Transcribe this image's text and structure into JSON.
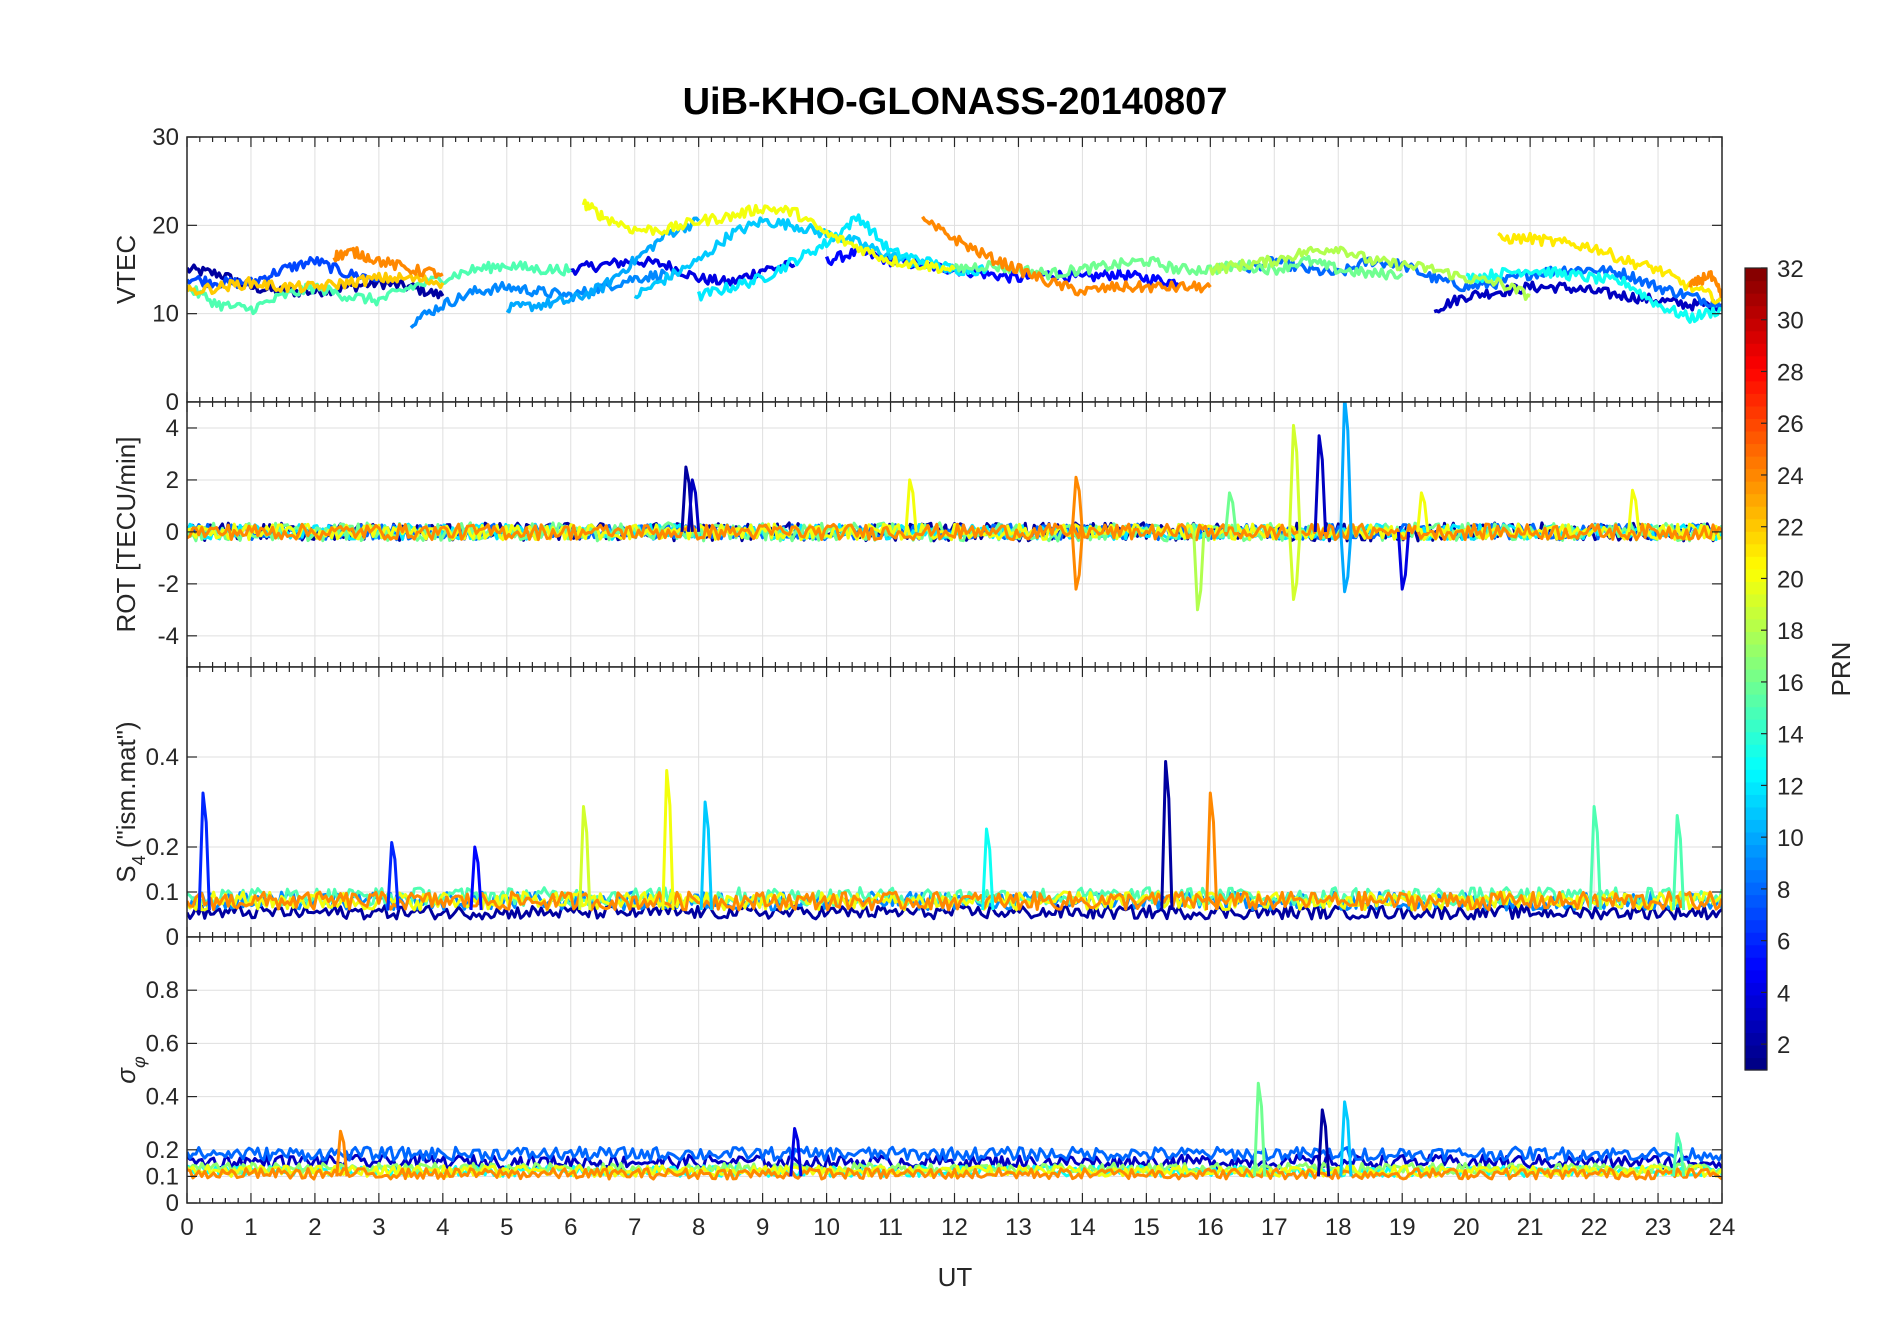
{
  "chart_data": {
    "type": "line",
    "title": "UiB-KHO-GLONASS-20140807",
    "xlabel": "UT",
    "xlim": [
      0,
      24
    ],
    "xticks": [
      0,
      1,
      2,
      3,
      4,
      5,
      6,
      7,
      8,
      9,
      10,
      11,
      12,
      13,
      14,
      15,
      16,
      17,
      18,
      19,
      20,
      21,
      22,
      23,
      24
    ],
    "grid": true,
    "panels": [
      {
        "id": "vtec",
        "ylabel": "VTEC",
        "ylim": [
          0,
          30
        ],
        "yticks": [
          0,
          10,
          20,
          30
        ],
        "yticklabels": [
          "0",
          "10",
          "20",
          "30"
        ],
        "series": [
          {
            "prn": 2,
            "x": [
              0,
              0.5,
              1,
              1.5,
              2,
              2.5,
              3,
              3.5,
              4
            ],
            "y": [
              15,
              14.5,
              13,
              12.5,
              12.5,
              13,
              13.5,
              13,
              12
            ]
          },
          {
            "prn": 4,
            "x": [
              6,
              6.5,
              7,
              7.5,
              8,
              8.5,
              9,
              9.5
            ],
            "y": [
              15,
              15.5,
              16,
              15.5,
              14,
              13.5,
              15,
              15.5
            ]
          },
          {
            "prn": 5,
            "x": [
              10,
              10.5,
              11,
              11.5,
              12,
              12.5,
              13,
              13.5,
              14,
              14.5,
              15,
              15.5
            ],
            "y": [
              16,
              17,
              16,
              15.5,
              15,
              14.5,
              14,
              14.5,
              14,
              14.5,
              14,
              13.5
            ]
          },
          {
            "prn": 3,
            "x": [
              19.5,
              20,
              20.5,
              21,
              21.5,
              22,
              22.5,
              23,
              23.5,
              24
            ],
            "y": [
              10.5,
              12,
              12.5,
              13,
              13,
              12.5,
              12,
              11.5,
              11,
              11
            ]
          },
          {
            "prn": 7,
            "x": [
              0,
              0.5,
              1,
              1.5,
              2,
              2.5,
              3
            ],
            "y": [
              14,
              13.5,
              13.5,
              15,
              16,
              14.5,
              14
            ]
          },
          {
            "prn": 8,
            "x": [
              16.5,
              17,
              17.5,
              18,
              18.5,
              19,
              19.5,
              20,
              20.5,
              21,
              21.5,
              22,
              22.5,
              23,
              23.5,
              24
            ],
            "y": [
              15,
              16,
              15,
              14.5,
              16,
              15.5,
              14,
              13,
              13.5,
              14.5,
              15,
              15,
              14.5,
              13,
              12,
              11
            ]
          },
          {
            "prn": 9,
            "x": [
              3.5,
              4,
              4.5,
              5,
              5.5,
              6,
              6.5,
              7,
              7.5
            ],
            "y": [
              9,
              11,
              12.5,
              13,
              12.5,
              12,
              13,
              14,
              14.5
            ]
          },
          {
            "prn": 10,
            "x": [
              5,
              5.5,
              6,
              6.5,
              7,
              7.5,
              8
            ],
            "y": [
              10.5,
              11,
              11.5,
              13,
              16,
              19,
              20.5
            ]
          },
          {
            "prn": 11,
            "x": [
              7,
              7.5,
              8,
              8.5,
              9,
              9.5,
              10,
              10.5,
              11,
              11.5,
              12
            ],
            "y": [
              12,
              14,
              16,
              19,
              20.5,
              20,
              19,
              18,
              16.5,
              15.5,
              15
            ]
          },
          {
            "prn": 12,
            "x": [
              8,
              8.5,
              9,
              9.5,
              10,
              10.5,
              11,
              11.5,
              12,
              12.5
            ],
            "y": [
              12,
              13,
              14,
              16,
              18,
              21,
              17,
              16,
              15,
              15
            ]
          },
          {
            "prn": 13,
            "x": [
              20,
              20.5,
              21,
              21.5,
              22,
              22.5,
              23,
              23.5,
              24
            ],
            "y": [
              14,
              14.5,
              15,
              14.5,
              14,
              13.5,
              11,
              9.5,
              10.5
            ]
          },
          {
            "prn": 15,
            "x": [
              0,
              0.5,
              1,
              1.5,
              2,
              2.5,
              3,
              3.5,
              4,
              4.5,
              5,
              5.5,
              6
            ],
            "y": [
              13,
              11,
              10.5,
              12,
              13,
              12,
              11.5,
              13,
              14,
              15,
              15.5,
              15,
              15
            ]
          },
          {
            "prn": 16,
            "x": [
              12,
              12.5,
              13,
              13.5,
              14,
              14.5,
              15,
              15.5,
              16,
              16.5,
              17,
              17.5,
              18,
              18.5,
              19
            ],
            "y": [
              15,
              15.5,
              15,
              14.5,
              15,
              15.5,
              16,
              15,
              15,
              15.5,
              15,
              16,
              15,
              14.5,
              14.5
            ]
          },
          {
            "prn": 18,
            "x": [
              16,
              16.5,
              17,
              17.5,
              18,
              18.5,
              19,
              19.5,
              20,
              20.5,
              21
            ],
            "y": [
              15,
              15.5,
              16,
              17,
              17.5,
              16,
              15.5,
              15,
              14,
              13.5,
              12
            ]
          },
          {
            "prn": 20,
            "x": [
              6.2,
              6.5,
              7,
              7.5,
              8,
              8.5,
              9,
              9.5,
              10,
              10.5,
              11,
              11.5,
              12
            ],
            "y": [
              22.5,
              21,
              19.5,
              19.5,
              20.5,
              21,
              22,
              21.5,
              19,
              17.5,
              16,
              15.5,
              15
            ]
          },
          {
            "prn": 21,
            "x": [
              20.5,
              21,
              21.5,
              22,
              22.5,
              23,
              23.5,
              24
            ],
            "y": [
              18.5,
              18.5,
              18,
              17.5,
              16,
              15,
              13,
              11.5
            ]
          },
          {
            "prn": 22,
            "x": [
              0,
              0.5,
              1,
              1.5,
              2,
              2.5,
              3,
              3.5,
              4
            ],
            "y": [
              12.5,
              13,
              13.5,
              13,
              13,
              13.5,
              14,
              14,
              13.5
            ]
          },
          {
            "prn": 24,
            "x": [
              2.3,
              2.6,
              3,
              3.5,
              4
            ],
            "y": [
              16.5,
              17,
              16,
              15,
              14.5
            ]
          },
          {
            "prn": 24,
            "x": [
              11.5,
              12,
              12.5,
              13,
              13.5,
              14,
              14.5,
              15,
              15.5,
              16
            ],
            "y": [
              20.5,
              18.5,
              16.5,
              15,
              13.5,
              12.5,
              13,
              13,
              13,
              13
            ]
          },
          {
            "prn": 24,
            "x": [
              23.5,
              23.8,
              24
            ],
            "y": [
              13,
              14.5,
              12
            ]
          }
        ]
      },
      {
        "id": "rot",
        "ylabel": "ROT [TECU/min]",
        "ylim": [
          -5.2,
          5
        ],
        "yticks": [
          -4,
          -2,
          0,
          2,
          4
        ],
        "yticklabels": [
          "-4",
          "-2",
          "0",
          "2",
          "4"
        ],
        "noise_series": [
          {
            "prn": 2,
            "amplitude": 0.35
          },
          {
            "prn": 8,
            "amplitude": 0.3
          },
          {
            "prn": 12,
            "amplitude": 0.3
          },
          {
            "prn": 16,
            "amplitude": 0.35
          },
          {
            "prn": 20,
            "amplitude": 0.3
          },
          {
            "prn": 24,
            "amplitude": 0.3
          }
        ],
        "spikes": [
          {
            "x": 7.8,
            "y": 2.5,
            "prn": 2
          },
          {
            "x": 7.9,
            "y": 2.0,
            "prn": 3
          },
          {
            "x": 11.3,
            "y": 2.0,
            "prn": 20
          },
          {
            "x": 13.9,
            "y": 2.1,
            "prn": 24
          },
          {
            "x": 13.9,
            "y": -2.2,
            "prn": 24
          },
          {
            "x": 15.8,
            "y": -3.0,
            "prn": 18
          },
          {
            "x": 16.3,
            "y": 1.5,
            "prn": 16
          },
          {
            "x": 17.3,
            "y": 4.1,
            "prn": 19
          },
          {
            "x": 17.3,
            "y": -2.6,
            "prn": 19
          },
          {
            "x": 17.7,
            "y": 3.7,
            "prn": 3
          },
          {
            "x": 18.1,
            "y": 5.2,
            "prn": 10
          },
          {
            "x": 18.1,
            "y": -2.3,
            "prn": 10
          },
          {
            "x": 19.0,
            "y": -2.2,
            "prn": 4
          },
          {
            "x": 19.3,
            "y": 1.5,
            "prn": 20
          },
          {
            "x": 22.6,
            "y": 1.6,
            "prn": 20
          }
        ]
      },
      {
        "id": "s4",
        "ylabel": "S4 (\"ism.mat\")",
        "ylabel_main": "S",
        "ylabel_sub": "4",
        "ylabel_rest": " (\"ism.mat\")",
        "ylim": [
          0,
          0.6
        ],
        "yticks": [
          0,
          0.1,
          0.2,
          0.4
        ],
        "yticklabels": [
          "0",
          "0.1",
          "0.2",
          "0.4"
        ],
        "noise_series": [
          {
            "prn": 2,
            "base": 0.04,
            "amplitude": 0.03
          },
          {
            "prn": 9,
            "base": 0.06,
            "amplitude": 0.04
          },
          {
            "prn": 15,
            "base": 0.07,
            "amplitude": 0.04
          },
          {
            "prn": 20,
            "base": 0.06,
            "amplitude": 0.04
          },
          {
            "prn": 24,
            "base": 0.06,
            "amplitude": 0.04
          }
        ],
        "spikes": [
          {
            "x": 0.25,
            "y": 0.32,
            "prn": 6
          },
          {
            "x": 6.2,
            "y": 0.29,
            "prn": 19
          },
          {
            "x": 7.5,
            "y": 0.37,
            "prn": 20
          },
          {
            "x": 8.1,
            "y": 0.3,
            "prn": 11
          },
          {
            "x": 12.5,
            "y": 0.24,
            "prn": 13
          },
          {
            "x": 15.3,
            "y": 0.39,
            "prn": 2
          },
          {
            "x": 16.0,
            "y": 0.32,
            "prn": 24
          },
          {
            "x": 22.0,
            "y": 0.29,
            "prn": 15
          },
          {
            "x": 23.3,
            "y": 0.27,
            "prn": 15
          },
          {
            "x": 3.2,
            "y": 0.21,
            "prn": 6
          },
          {
            "x": 4.5,
            "y": 0.2,
            "prn": 5
          }
        ]
      },
      {
        "id": "sigma",
        "ylabel": "σ φ",
        "ylabel_main": "σ",
        "ylabel_sub": "φ",
        "ylim": [
          0,
          1
        ],
        "yticks": [
          0,
          0.1,
          0.2,
          0.4,
          0.6,
          0.8
        ],
        "yticklabels": [
          "0",
          "0.1",
          "0.2",
          "0.4",
          "0.6",
          "0.8"
        ],
        "noise_series": [
          {
            "prn": 3,
            "base": 0.13,
            "amplitude": 0.05
          },
          {
            "prn": 8,
            "base": 0.16,
            "amplitude": 0.05
          },
          {
            "prn": 13,
            "base": 0.1,
            "amplitude": 0.04
          },
          {
            "prn": 17,
            "base": 0.11,
            "amplitude": 0.04
          },
          {
            "prn": 20,
            "base": 0.1,
            "amplitude": 0.04
          },
          {
            "prn": 24,
            "base": 0.09,
            "amplitude": 0.04
          }
        ],
        "spikes": [
          {
            "x": 16.75,
            "y": 0.45,
            "prn": 16
          },
          {
            "x": 17.75,
            "y": 0.35,
            "prn": 2
          },
          {
            "x": 18.1,
            "y": 0.38,
            "prn": 11
          },
          {
            "x": 9.5,
            "y": 0.28,
            "prn": 4
          },
          {
            "x": 2.4,
            "y": 0.27,
            "prn": 24
          },
          {
            "x": 23.3,
            "y": 0.26,
            "prn": 15
          }
        ]
      }
    ],
    "colorbar": {
      "label": "PRN",
      "colormap": "jet",
      "clim": [
        1,
        32
      ],
      "ticks": [
        2,
        4,
        6,
        8,
        10,
        12,
        14,
        16,
        18,
        20,
        22,
        24,
        26,
        28,
        30,
        32
      ],
      "ticklabels": [
        "2",
        "4",
        "6",
        "8",
        "10",
        "12",
        "14",
        "16",
        "18",
        "20",
        "22",
        "24",
        "26",
        "28",
        "30",
        "32"
      ]
    }
  }
}
